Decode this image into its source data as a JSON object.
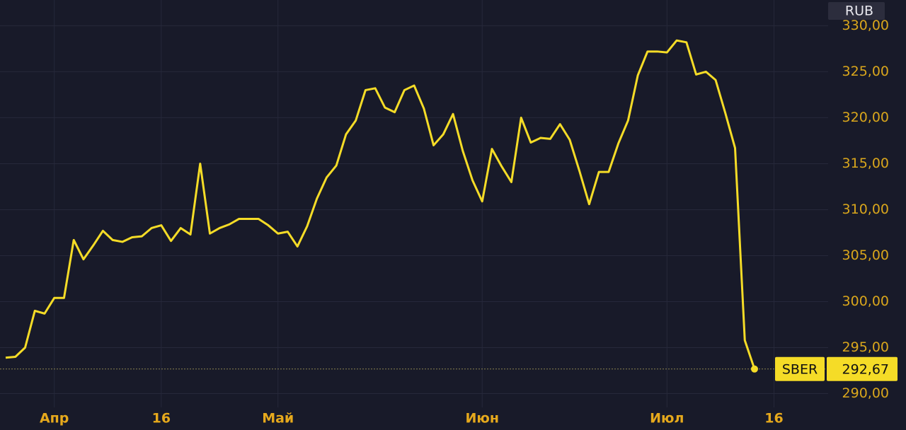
{
  "chart_data": {
    "type": "line",
    "currency": "RUB",
    "categories": [
      null,
      null,
      null,
      null,
      null,
      "Апр",
      null,
      null,
      null,
      null,
      null,
      null,
      null,
      null,
      null,
      null,
      "16",
      null,
      null,
      null,
      null,
      null,
      null,
      null,
      null,
      null,
      null,
      null,
      "Май",
      null,
      null,
      null,
      null,
      null,
      null,
      null,
      null,
      null,
      null,
      null,
      null,
      null,
      null,
      null,
      null,
      null,
      null,
      null,
      null,
      "Июн",
      null,
      null,
      null,
      null,
      null,
      null,
      null,
      null,
      null,
      null,
      null,
      null,
      null,
      null,
      null,
      null,
      null,
      null,
      "Июл",
      null,
      null,
      null,
      null,
      null,
      null,
      null,
      null,
      null,
      null,
      "16"
    ],
    "series": [
      {
        "name": "SBER",
        "color": "#f5dc27",
        "values": [
          293.9,
          294.0,
          295.0,
          299.0,
          298.7,
          300.4,
          300.4,
          306.7,
          304.6,
          306.1,
          307.7,
          306.7,
          306.5,
          307.0,
          307.1,
          308.0,
          308.3,
          306.6,
          308.0,
          307.3,
          315.0,
          307.4,
          308.0,
          308.4,
          309.0,
          309.0,
          309.0,
          308.3,
          307.4,
          307.6,
          306.0,
          308.2,
          311.2,
          313.5,
          314.8,
          318.2,
          319.7,
          323.0,
          323.2,
          321.1,
          320.6,
          323.0,
          323.5,
          321.0,
          317.0,
          318.2,
          320.4,
          316.4,
          313.2,
          310.9,
          316.6,
          314.7,
          313.0,
          320.0,
          317.3,
          317.8,
          317.7,
          319.3,
          317.6,
          314.2,
          310.6,
          314.1,
          314.1,
          317.2,
          319.7,
          324.6,
          327.2,
          327.2,
          327.1,
          328.4,
          328.2,
          324.7,
          325.0,
          324.1,
          320.5,
          316.7,
          295.8,
          292.67,
          null,
          null
        ],
        "value_labels": [
          null,
          null,
          null,
          null,
          null,
          null,
          null,
          null,
          null,
          null,
          null,
          null,
          null,
          null,
          null,
          null,
          null,
          null,
          null,
          null,
          null,
          null,
          null,
          null,
          null,
          null,
          null,
          null,
          null,
          null,
          null,
          null,
          null,
          null,
          null,
          null,
          null,
          null,
          null,
          null,
          null,
          null,
          null,
          null,
          null,
          null,
          null,
          null,
          null,
          null,
          null,
          null,
          null,
          null,
          null,
          null,
          null,
          null,
          null,
          null,
          null,
          null,
          null,
          null,
          null,
          null,
          null,
          null,
          null,
          null,
          null,
          null,
          null,
          null,
          null,
          null,
          null,
          "292,67",
          null,
          null
        ]
      }
    ],
    "ylim": [
      288.5,
      332.8
    ],
    "yticks": [
      {
        "value": 290,
        "label": "290,00"
      },
      {
        "value": 295,
        "label": "295,00"
      },
      {
        "value": 300,
        "label": "300,00"
      },
      {
        "value": 305,
        "label": "305,00"
      },
      {
        "value": 310,
        "label": "310,00"
      },
      {
        "value": 315,
        "label": "315,00"
      },
      {
        "value": 320,
        "label": "320,00"
      },
      {
        "value": 325,
        "label": "325,00"
      },
      {
        "value": 330,
        "label": "330,00"
      }
    ],
    "grid": true
  }
}
